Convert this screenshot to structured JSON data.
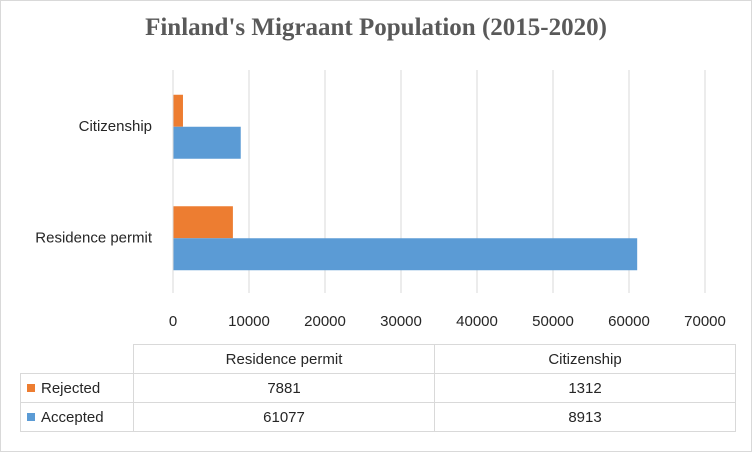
{
  "chart_data": {
    "type": "bar",
    "orientation": "horizontal",
    "title": "Finland's Migraant Population (2015-2020)",
    "categories": [
      "Residence permit",
      "Citizenship"
    ],
    "series": [
      {
        "name": "Rejected",
        "color": "#ed7d31",
        "values": [
          7881,
          1312
        ]
      },
      {
        "name": "Accepted",
        "color": "#5b9bd5",
        "values": [
          61077,
          8913
        ]
      }
    ],
    "xlim": [
      0,
      70000
    ],
    "x_ticks": [
      "0",
      "10000",
      "20000",
      "30000",
      "40000",
      "50000",
      "60000",
      "70000"
    ],
    "grid": true,
    "legend": "data table"
  },
  "table": {
    "headers": [
      "Residence permit",
      "Citizenship"
    ],
    "rows": [
      {
        "label": "Rejected",
        "color": "#ed7d31",
        "values": [
          "7881",
          "1312"
        ]
      },
      {
        "label": "Accepted",
        "color": "#5b9bd5",
        "values": [
          "61077",
          "8913"
        ]
      }
    ]
  }
}
